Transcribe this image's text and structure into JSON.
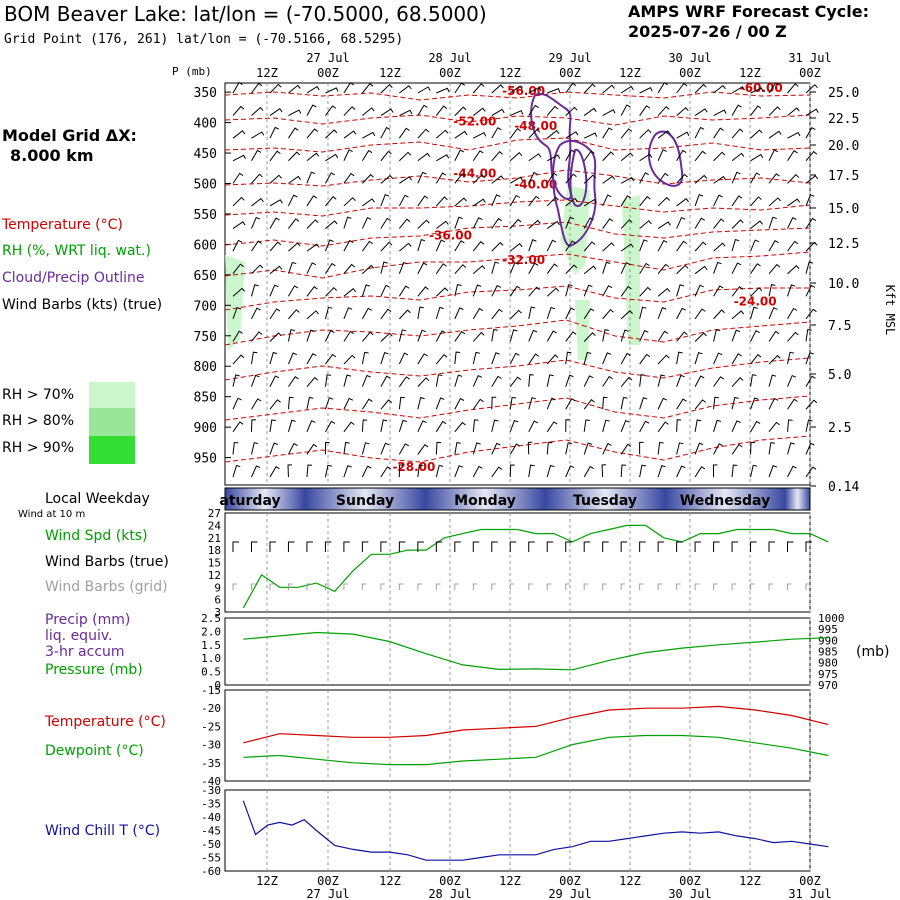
{
  "header": {
    "title": "BOM Beaver Lake:  lat/lon = (-70.5000, 68.5000)",
    "grid_point": "Grid Point (176, 261) lat/lon = (-70.5166, 68.5295)",
    "cycle_line1": "AMPS WRF Forecast Cycle:",
    "cycle_line2": "2025-07-26 / 00  Z"
  },
  "model_grid": {
    "line1": "Model Grid ΔX:",
    "line2": "8.000 km"
  },
  "legend": {
    "temperature": "Temperature (°C)",
    "rh": "RH (%, WRT liq. wat.)",
    "cloud": "Cloud/Precip Outline",
    "wind": "Wind Barbs (kts) (true)",
    "rh70": "RH > 70%",
    "rh80": "RH > 80%",
    "rh90": "RH > 90%",
    "local_weekday": "Local Weekday",
    "wind_at_10m": "Wind at 10 m",
    "wind_spd": "Wind Spd (kts)",
    "wind_barbs_true": "Wind Barbs (true)",
    "wind_barbs_grid": "Wind Barbs (grid)",
    "precip": "Precip (mm)",
    "liq_equiv": "liq. equiv.",
    "accum": "3-hr accum",
    "pressure": "Pressure (mb)",
    "temperature2": "Temperature (°C)",
    "dewpoint": "Dewpoint (°C)",
    "wind_chill": "Wind Chill T (°C)",
    "pressure_units": "(mb)"
  },
  "colors": {
    "temperature": "#d00000",
    "rh": "#00a000",
    "cloud": "#6a2a9a",
    "wind": "#000000",
    "wind_grid": "#a0a0a0",
    "wind_chill": "#1010a0",
    "rh70": "#ccf6cc",
    "rh80": "#99e699",
    "rh90": "#33dd33",
    "weekday_band_dark": "#3848a0",
    "weekday_band_light": "#e6e8f4"
  },
  "chart_data": [
    {
      "type": "line",
      "name": "cross-section",
      "y_label": "P (mb)",
      "y_right_label": "Kft MSL",
      "y_ticks": [
        "350",
        "400",
        "450",
        "500",
        "550",
        "600",
        "650",
        "700",
        "750",
        "800",
        "850",
        "900",
        "950"
      ],
      "y_right_ticks": [
        "25.0",
        "22.5",
        "20.0",
        "17.5",
        "15.0",
        "12.5",
        "10.0",
        "7.5",
        "5.0",
        "2.5",
        "0.14"
      ],
      "x_top_ticks": [
        "12Z",
        "00Z",
        "12Z",
        "00Z",
        "12Z",
        "00Z",
        "12Z",
        "00Z",
        "12Z",
        "00Z"
      ],
      "x_top_dates": [
        "27 Jul",
        "28 Jul",
        "29 Jul",
        "30 Jul",
        "31 Jul"
      ],
      "temperature_labels": [
        {
          "text": "-56.00",
          "t": 46,
          "p": 355
        },
        {
          "text": "-60.00",
          "t": 85,
          "p": 350
        },
        {
          "text": "-52.00",
          "t": 38,
          "p": 405
        },
        {
          "text": "-48.00",
          "t": 48,
          "p": 412
        },
        {
          "text": "-44.00",
          "t": 38,
          "p": 490
        },
        {
          "text": "-40.00",
          "t": 48,
          "p": 508
        },
        {
          "text": "-36.00",
          "t": 34,
          "p": 592
        },
        {
          "text": "-32.00",
          "t": 46,
          "p": 632
        },
        {
          "text": "-24.00",
          "t": 84,
          "p": 700
        },
        {
          "text": "-28.00",
          "t": 28,
          "p": 972
        }
      ]
    },
    {
      "type": "line",
      "name": "weekday",
      "labels": [
        "aturday",
        "Sunday",
        "Monday",
        "Tuesday",
        "Wednesday"
      ]
    },
    {
      "type": "line",
      "name": "wind-speed",
      "y_ticks": [
        "3",
        "6",
        "9",
        "12",
        "15",
        "18",
        "21",
        "24",
        "27"
      ],
      "x": [
        0,
        3,
        6,
        9,
        12,
        15,
        18,
        21,
        24,
        27,
        30,
        33,
        36,
        39,
        42,
        45,
        48,
        51,
        54,
        57,
        60,
        63,
        66,
        69,
        72,
        75,
        78,
        81,
        84,
        87,
        90,
        93,
        96
      ],
      "values": [
        4,
        12,
        9,
        9,
        10,
        8,
        13,
        17,
        17,
        18,
        18,
        21,
        22,
        23,
        23,
        23,
        22,
        22,
        20,
        22,
        23,
        24,
        24,
        21,
        20,
        22,
        22,
        23,
        23,
        23,
        22,
        22,
        20
      ]
    },
    {
      "type": "line",
      "name": "pressure",
      "y_ticks": [
        "0",
        "0.5",
        "1.0",
        "1.5",
        "2.0",
        "2.5"
      ],
      "y_right_ticks": [
        "970",
        "975",
        "980",
        "985",
        "990",
        "995",
        "1000"
      ],
      "x": [
        0,
        6,
        12,
        18,
        24,
        30,
        36,
        42,
        48,
        54,
        60,
        66,
        72,
        78,
        84,
        90,
        96
      ],
      "values": [
        990.5,
        992,
        993.5,
        992.8,
        989.5,
        984,
        979,
        977,
        977.2,
        976.8,
        981,
        984.5,
        986.5,
        988,
        989.2,
        990.5,
        991.2
      ]
    },
    {
      "type": "line",
      "name": "temp-dewpoint",
      "y_ticks": [
        "-15",
        "-20",
        "-25",
        "-30",
        "-35",
        "-40"
      ],
      "x": [
        0,
        6,
        12,
        18,
        24,
        30,
        36,
        42,
        48,
        54,
        60,
        66,
        72,
        78,
        84,
        90,
        96
      ],
      "temperature": [
        -29.5,
        -27,
        -27.5,
        -28,
        -28,
        -27.5,
        -26,
        -25.5,
        -25,
        -22.5,
        -20.5,
        -20,
        -20,
        -19.5,
        -20.5,
        -22,
        -24.5
      ],
      "dewpoint": [
        -33.5,
        -33,
        -34,
        -35,
        -35.5,
        -35.5,
        -34.5,
        -34,
        -33.5,
        -30,
        -28,
        -27.5,
        -27.5,
        -28,
        -29.5,
        -31,
        -33
      ]
    },
    {
      "type": "line",
      "name": "wind-chill",
      "y_ticks": [
        "-30",
        "-35",
        "-40",
        "-45",
        "-50",
        "-55",
        "-60"
      ],
      "x": [
        0,
        2,
        4,
        6,
        8,
        10,
        12,
        15,
        18,
        21,
        24,
        27,
        30,
        33,
        36,
        39,
        42,
        45,
        48,
        51,
        54,
        57,
        60,
        63,
        66,
        69,
        72,
        75,
        78,
        81,
        84,
        87,
        90,
        93,
        96
      ],
      "values": [
        -34,
        -46.5,
        -43,
        -42,
        -43,
        -41,
        -45,
        -50.5,
        -52,
        -53,
        -53,
        -54,
        -56,
        -56,
        -56,
        -55,
        -54,
        -54,
        -54,
        -52,
        -51,
        -49,
        -49,
        -48,
        -47,
        -46,
        -45.5,
        -46,
        -45.5,
        -47,
        -48,
        -49.5,
        -49,
        -50,
        -51
      ]
    },
    {
      "type": "line",
      "name": "bottom-axis",
      "x_ticks": [
        "12Z",
        "00Z",
        "12Z",
        "00Z",
        "12Z",
        "00Z",
        "12Z",
        "00Z",
        "12Z",
        "00Z"
      ],
      "x_dates": [
        "27 Jul",
        "28 Jul",
        "29 Jul",
        "30 Jul",
        "31 Jul"
      ]
    }
  ]
}
